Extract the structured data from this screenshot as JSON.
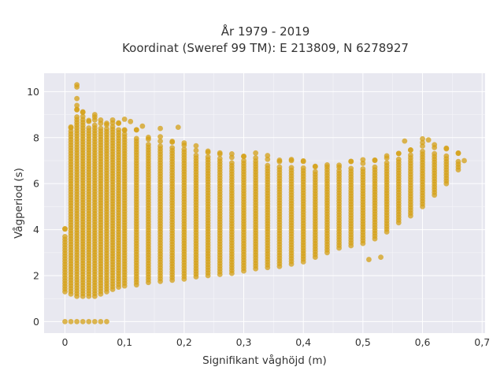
{
  "chart_data": {
    "type": "scatter",
    "title_lines": [
      "År 1979 - 2019",
      "Koordinat (Sweref 99 TM): E 213809, N 6278927"
    ],
    "xlabel": "Signifikant våghöjd (m)",
    "ylabel": "Vågperiod (s)",
    "xlim": [
      -0.035,
      0.705
    ],
    "ylim": [
      -0.5,
      10.8
    ],
    "x_ticks": [
      0,
      0.1,
      0.2,
      0.3,
      0.4,
      0.5,
      0.6,
      0.7
    ],
    "x_tick_labels": [
      "0",
      "0,1",
      "0,2",
      "0,3",
      "0,4",
      "0,5",
      "0,6",
      "0,7"
    ],
    "y_ticks": [
      0,
      2,
      4,
      6,
      8,
      10
    ],
    "y_tick_labels": [
      "0",
      "2",
      "4",
      "6",
      "8",
      "10"
    ],
    "grid": true,
    "legend": false,
    "marker_color": "#d4a017",
    "plot_background": "#e8e8f0",
    "series": [
      {
        "columns": [
          {
            "x": 0.0,
            "y": [
              1.3,
              3.8
            ]
          },
          {
            "x": 0.01,
            "y": [
              1.2,
              8.3
            ]
          },
          {
            "x": 0.02,
            "y": [
              1.1,
              9.0
            ]
          },
          {
            "x": 0.03,
            "y": [
              1.1,
              8.8
            ]
          },
          {
            "x": 0.04,
            "y": [
              1.1,
              8.5
            ]
          },
          {
            "x": 0.05,
            "y": [
              1.1,
              8.6
            ]
          },
          {
            "x": 0.06,
            "y": [
              1.2,
              8.5
            ]
          },
          {
            "x": 0.07,
            "y": [
              1.3,
              8.4
            ]
          },
          {
            "x": 0.08,
            "y": [
              1.4,
              8.5
            ]
          },
          {
            "x": 0.09,
            "y": [
              1.5,
              8.4
            ]
          },
          {
            "x": 0.1,
            "y": [
              1.55,
              8.2
            ]
          },
          {
            "x": 0.12,
            "y": [
              1.6,
              8.0
            ]
          },
          {
            "x": 0.14,
            "y": [
              1.7,
              7.8
            ]
          },
          {
            "x": 0.16,
            "y": [
              1.75,
              7.7
            ]
          },
          {
            "x": 0.18,
            "y": [
              1.8,
              7.6
            ]
          },
          {
            "x": 0.2,
            "y": [
              1.85,
              7.5
            ]
          },
          {
            "x": 0.22,
            "y": [
              1.95,
              7.3
            ]
          },
          {
            "x": 0.24,
            "y": [
              2.0,
              7.2
            ]
          },
          {
            "x": 0.26,
            "y": [
              2.05,
              7.1
            ]
          },
          {
            "x": 0.28,
            "y": [
              2.1,
              7.0
            ]
          },
          {
            "x": 0.3,
            "y": [
              2.2,
              7.0
            ]
          },
          {
            "x": 0.32,
            "y": [
              2.3,
              7.0
            ]
          },
          {
            "x": 0.34,
            "y": [
              2.35,
              6.9
            ]
          },
          {
            "x": 0.36,
            "y": [
              2.4,
              6.8
            ]
          },
          {
            "x": 0.38,
            "y": [
              2.5,
              6.8
            ]
          },
          {
            "x": 0.4,
            "y": [
              2.6,
              6.7
            ]
          },
          {
            "x": 0.42,
            "y": [
              2.8,
              6.6
            ]
          },
          {
            "x": 0.44,
            "y": [
              3.0,
              6.6
            ]
          },
          {
            "x": 0.46,
            "y": [
              3.2,
              6.6
            ]
          },
          {
            "x": 0.48,
            "y": [
              3.3,
              6.7
            ]
          },
          {
            "x": 0.5,
            "y": [
              3.4,
              6.7
            ]
          },
          {
            "x": 0.52,
            "y": [
              3.6,
              6.8
            ]
          },
          {
            "x": 0.54,
            "y": [
              3.9,
              6.9
            ]
          },
          {
            "x": 0.56,
            "y": [
              4.3,
              7.1
            ]
          },
          {
            "x": 0.58,
            "y": [
              4.6,
              7.3
            ]
          },
          {
            "x": 0.6,
            "y": [
              5.0,
              7.5
            ]
          },
          {
            "x": 0.62,
            "y": [
              5.5,
              7.4
            ]
          },
          {
            "x": 0.64,
            "y": [
              6.0,
              7.2
            ]
          },
          {
            "x": 0.66,
            "y": [
              6.6,
              7.0
            ]
          }
        ],
        "extra_points": [
          {
            "x": 0.02,
            "y": 10.3
          },
          {
            "x": 0.02,
            "y": 10.2
          },
          {
            "x": 0.02,
            "y": 9.7
          },
          {
            "x": 0.02,
            "y": 9.4
          },
          {
            "x": 0.03,
            "y": 9.1
          },
          {
            "x": 0.05,
            "y": 9.0
          },
          {
            "x": 0.1,
            "y": 8.8
          },
          {
            "x": 0.11,
            "y": 8.7
          },
          {
            "x": 0.13,
            "y": 8.5
          },
          {
            "x": 0.16,
            "y": 8.4
          },
          {
            "x": 0.19,
            "y": 8.45
          },
          {
            "x": 0.0,
            "y": 0.0
          },
          {
            "x": 0.01,
            "y": 0.0
          },
          {
            "x": 0.02,
            "y": 0.0
          },
          {
            "x": 0.03,
            "y": 0.0
          },
          {
            "x": 0.04,
            "y": 0.0
          },
          {
            "x": 0.05,
            "y": 0.0
          },
          {
            "x": 0.06,
            "y": 0.0
          },
          {
            "x": 0.07,
            "y": 0.0
          },
          {
            "x": 0.57,
            "y": 7.85
          },
          {
            "x": 0.6,
            "y": 7.95
          },
          {
            "x": 0.61,
            "y": 7.9
          },
          {
            "x": 0.67,
            "y": 7.0
          },
          {
            "x": 0.53,
            "y": 2.8
          },
          {
            "x": 0.51,
            "y": 2.7
          }
        ]
      }
    ]
  }
}
